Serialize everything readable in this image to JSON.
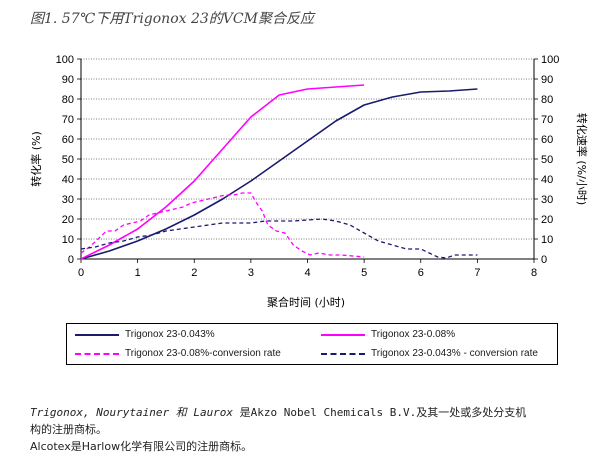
{
  "figure_title": "图1.  57℃下用Trigonox 23的VCM聚合反应",
  "chart_data": {
    "type": "line",
    "xlabel": "聚合时间 (小时)",
    "ylabel_left": "转化率 (%)",
    "ylabel_right": "转化速率 (%/小时)",
    "xlim": [
      0,
      8
    ],
    "ylim": [
      0,
      100
    ],
    "x_ticks": [
      "0",
      "1",
      "2",
      "3",
      "4",
      "5",
      "6",
      "7",
      "8"
    ],
    "y_ticks": [
      "0",
      "10",
      "20",
      "30",
      "40",
      "50",
      "60",
      "70",
      "80",
      "90",
      "100"
    ],
    "grid": true,
    "legend_position": "bottom",
    "series": [
      {
        "name": "Trigonox 23-0.043%",
        "color": "#1a1a6e",
        "style": "solid",
        "x": [
          0,
          0.5,
          1,
          1.5,
          2,
          2.5,
          3,
          3.5,
          4,
          4.5,
          5,
          5.5,
          6,
          6.5,
          7
        ],
        "y": [
          0,
          4,
          9,
          15,
          22,
          30,
          39,
          49,
          59,
          69,
          77,
          81,
          83.5,
          84,
          85
        ]
      },
      {
        "name": "Trigonox 23-0.08%",
        "color": "#ff00ff",
        "style": "solid",
        "x": [
          0,
          0.5,
          1,
          1.5,
          2,
          2.5,
          3,
          3.5,
          4,
          4.5,
          5
        ],
        "y": [
          0,
          7,
          15,
          26,
          39,
          55,
          71,
          82,
          85,
          86,
          87
        ]
      },
      {
        "name": "Trigonox 23-0.08%-conversion rate",
        "color": "#ff00ff",
        "style": "dashed",
        "x": [
          0,
          0.15,
          0.3,
          0.45,
          0.6,
          0.75,
          0.9,
          1.05,
          1.2,
          1.35,
          1.5,
          1.65,
          1.8,
          1.95,
          2.1,
          2.25,
          2.4,
          2.55,
          2.7,
          2.85,
          3.0,
          3.1,
          3.2,
          3.3,
          3.45,
          3.6,
          3.75,
          3.9,
          4.05,
          4.2,
          4.4,
          4.6,
          4.8,
          5.0
        ],
        "y": [
          3,
          6,
          10,
          14,
          14,
          17,
          18,
          19,
          22,
          23,
          24,
          25,
          26,
          28,
          29,
          30,
          31,
          32,
          32,
          33,
          33,
          28,
          24,
          17,
          14,
          13,
          7,
          4,
          2,
          3,
          2,
          2,
          1.5,
          1
        ]
      },
      {
        "name": "Trigonox 23-0.043% - conversion rate",
        "color": "#1a1a6e",
        "style": "dashed",
        "x": [
          0,
          0.25,
          0.5,
          0.75,
          1,
          1.25,
          1.5,
          1.75,
          2,
          2.25,
          2.5,
          2.75,
          3,
          3.25,
          3.5,
          3.75,
          4,
          4.25,
          4.5,
          4.75,
          5,
          5.25,
          5.5,
          5.75,
          6,
          6.15,
          6.3,
          6.45,
          6.6,
          6.8,
          7
        ],
        "y": [
          5,
          6,
          8,
          9,
          11,
          12,
          14,
          15,
          16,
          17,
          18,
          18,
          18,
          19,
          19,
          19,
          19.5,
          20,
          19,
          17,
          13,
          9,
          7,
          5,
          5,
          3,
          1,
          0.5,
          2,
          2,
          2
        ]
      }
    ]
  },
  "legend": [
    {
      "label": "Trigonox 23-0.043%"
    },
    {
      "label": "Trigonox 23-0.08%"
    },
    {
      "label": "Trigonox 23-0.08%-conversion rate"
    },
    {
      "label": "Trigonox 23-0.043% - conversion rate"
    }
  ],
  "notes": {
    "line1_a": "Trigonox, Nourytainer 和 Laurox",
    "line1_b": " 是Akzo Nobel Chemicals B.V.及其一处或多处分支机",
    "line2": "构的注册商标。",
    "line3": "Alcotex是Harlow化学有限公司的注册商标。"
  }
}
